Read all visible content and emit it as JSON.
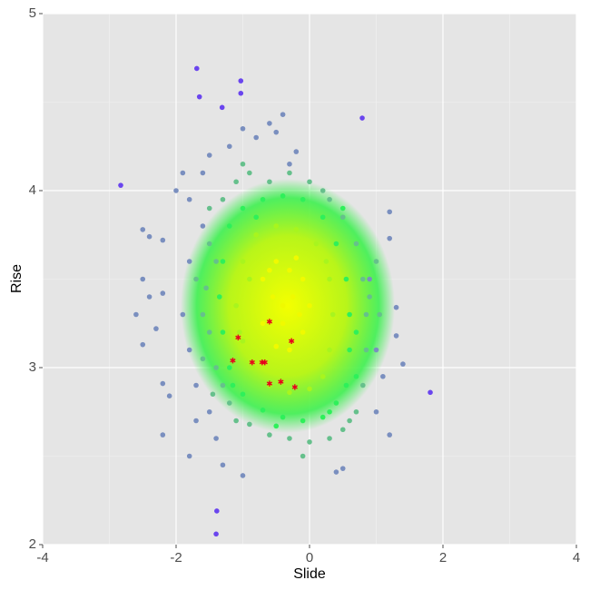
{
  "chart_data": {
    "type": "scatter",
    "x_label": "Slide",
    "y_label": "Rise",
    "xlim": [
      -4,
      4
    ],
    "ylim": [
      2,
      5
    ],
    "xticks": [
      -4,
      -2,
      0,
      2,
      4
    ],
    "yticks": [
      2,
      3,
      4,
      5
    ],
    "grid": true,
    "series": [
      {
        "color": "#6a45ee",
        "marker": "circle",
        "x": [
          -1.69,
          -1.03,
          -1.65,
          -1.03,
          -2.83,
          1.81,
          -1.4,
          -1.39,
          0.79,
          -1.31
        ],
        "y": [
          4.69,
          4.62,
          4.53,
          4.55,
          4.03,
          2.86,
          2.06,
          2.19,
          4.41,
          4.47
        ]
      },
      {
        "color": "#7a8fbf",
        "marker": "circle",
        "x": [
          -2.5,
          -2.4,
          -2.2,
          -2.5,
          -2.4,
          -2.6,
          -2.2,
          -2.3,
          -2.5,
          -2.2,
          -2.1,
          -2.2,
          -1.8,
          -1.4,
          -1.3,
          -1.0,
          0.4,
          0.5,
          1.2,
          1.4,
          1.3,
          1.3,
          1.2,
          1.2,
          -1.9,
          -2.0,
          -1.8,
          -1.6,
          -1.5,
          -1.2,
          -1.0,
          -0.8,
          -0.5,
          -0.4,
          -0.6,
          -0.2,
          -0.3,
          -1.8,
          -1.9,
          -1.8,
          -1.7,
          -1.5,
          -1.6,
          -1.7,
          1.0,
          1.1,
          0.9,
          1.0
        ],
        "y": [
          3.78,
          3.74,
          3.72,
          3.5,
          3.4,
          3.3,
          3.42,
          3.22,
          3.13,
          2.91,
          2.84,
          2.62,
          2.5,
          2.6,
          2.45,
          2.39,
          2.41,
          2.43,
          2.62,
          3.02,
          3.34,
          3.18,
          3.73,
          3.88,
          4.1,
          4.0,
          3.95,
          4.1,
          4.2,
          4.25,
          4.35,
          4.3,
          4.33,
          4.43,
          4.38,
          4.22,
          4.15,
          3.6,
          3.3,
          3.1,
          2.9,
          2.75,
          3.8,
          2.7,
          2.75,
          2.95,
          3.5,
          3.1
        ]
      },
      {
        "color": "#66c08c",
        "marker": "circle",
        "x": [
          -1.5,
          -1.3,
          -1.1,
          -0.9,
          -0.6,
          -0.3,
          0.0,
          0.3,
          0.5,
          0.7,
          0.8,
          0.85,
          0.85,
          0.8,
          0.7,
          0.5,
          0.3,
          0.0,
          -0.3,
          -0.6,
          -0.9,
          -1.2,
          -1.4,
          -1.5,
          -1.55,
          -1.5,
          -1.6,
          -1.4,
          -1.3,
          0.9,
          -1.45,
          -1.0,
          0.2,
          0.6,
          1.05,
          1.0,
          -1.7,
          -1.6,
          -1.1,
          -0.1
        ],
        "y": [
          3.9,
          3.95,
          4.05,
          4.1,
          4.05,
          4.1,
          4.05,
          3.95,
          3.85,
          3.7,
          3.5,
          3.3,
          3.1,
          2.9,
          2.75,
          2.65,
          2.6,
          2.58,
          2.6,
          2.62,
          2.68,
          2.8,
          3.0,
          3.2,
          3.45,
          3.7,
          3.3,
          3.6,
          2.9,
          3.4,
          2.85,
          4.15,
          4.0,
          2.7,
          3.3,
          3.6,
          3.5,
          3.05,
          2.7,
          2.5
        ]
      },
      {
        "color": "#2ef05a",
        "marker": "circle",
        "x": [
          -1.2,
          -1.0,
          -0.7,
          -0.4,
          -0.1,
          0.2,
          0.4,
          0.55,
          0.6,
          0.6,
          0.55,
          0.4,
          0.2,
          -0.1,
          -0.4,
          -0.7,
          -1.0,
          -1.2,
          -1.3,
          -1.35,
          -1.3,
          0.5,
          -0.8,
          0.7,
          0.7,
          -1.15,
          0.3,
          -0.5
        ],
        "y": [
          3.8,
          3.9,
          3.95,
          3.97,
          3.95,
          3.85,
          3.7,
          3.5,
          3.3,
          3.1,
          2.9,
          2.8,
          2.72,
          2.7,
          2.72,
          2.76,
          2.85,
          3.0,
          3.2,
          3.4,
          3.6,
          3.9,
          3.85,
          3.2,
          2.95,
          2.9,
          2.75,
          2.67
        ]
      },
      {
        "color": "#a8f51e",
        "marker": "circle",
        "x": [
          -1.0,
          -0.8,
          -0.5,
          -0.2,
          0.1,
          0.3,
          0.35,
          0.3,
          0.2,
          0.0,
          -0.3,
          -0.6,
          -0.85,
          -1.0,
          -1.1,
          -0.9,
          0.25,
          -1.05
        ],
        "y": [
          3.6,
          3.75,
          3.8,
          3.78,
          3.7,
          3.5,
          3.3,
          3.1,
          2.95,
          2.88,
          2.86,
          2.9,
          3.0,
          3.15,
          3.35,
          3.5,
          3.6,
          3.2
        ]
      },
      {
        "color": "#f0fa00",
        "marker": "circle",
        "x": [
          -0.7,
          -0.5,
          -0.3,
          -0.1,
          0.0,
          -0.1,
          -0.3,
          -0.5,
          -0.7,
          -0.4,
          -0.25,
          -0.55,
          -0.15,
          -0.4,
          -0.6,
          -0.2
        ],
        "y": [
          3.5,
          3.6,
          3.55,
          3.5,
          3.35,
          3.2,
          3.1,
          3.12,
          3.25,
          3.35,
          3.4,
          3.4,
          3.3,
          3.25,
          3.55,
          3.62
        ]
      },
      {
        "color": "#e8001c",
        "marker": "asterisk",
        "x": [
          -0.6,
          -1.07,
          -0.27,
          -1.15,
          -0.86,
          -0.71,
          -0.67,
          -0.6,
          -0.43,
          -0.22
        ],
        "y": [
          3.26,
          3.17,
          3.15,
          3.04,
          3.03,
          3.03,
          3.03,
          2.91,
          2.92,
          2.89
        ]
      }
    ]
  }
}
